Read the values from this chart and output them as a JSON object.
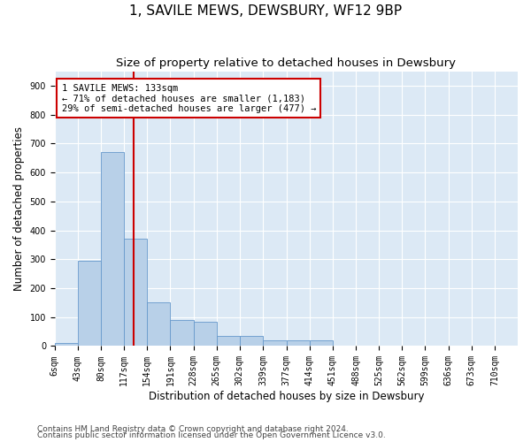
{
  "title": "1, SAVILE MEWS, DEWSBURY, WF12 9BP",
  "subtitle": "Size of property relative to detached houses in Dewsbury",
  "xlabel": "Distribution of detached houses by size in Dewsbury",
  "ylabel": "Number of detached properties",
  "footnote1": "Contains HM Land Registry data © Crown copyright and database right 2024.",
  "footnote2": "Contains public sector information licensed under the Open Government Licence v3.0.",
  "annotation_line1": "1 SAVILE MEWS: 133sqm",
  "annotation_line2": "← 71% of detached houses are smaller (1,183)",
  "annotation_line3": "29% of semi-detached houses are larger (477) →",
  "bar_edges": [
    6,
    43,
    80,
    117,
    154,
    191,
    228,
    265,
    302,
    339,
    377,
    414,
    451,
    488,
    525,
    562,
    599,
    636,
    673,
    710,
    747
  ],
  "bar_heights": [
    10,
    295,
    670,
    370,
    150,
    90,
    85,
    35,
    35,
    20,
    20,
    20,
    0,
    0,
    0,
    0,
    0,
    0,
    0,
    0
  ],
  "bar_color": "#b8d0e8",
  "bar_edgecolor": "#6699cc",
  "vline_color": "#cc0000",
  "vline_x": 133,
  "annotation_box_color": "#cc0000",
  "ylim": [
    0,
    950
  ],
  "yticks": [
    0,
    100,
    200,
    300,
    400,
    500,
    600,
    700,
    800,
    900
  ],
  "background_color": "#dce9f5",
  "grid_color": "#ffffff",
  "title_fontsize": 11,
  "subtitle_fontsize": 9.5,
  "axis_label_fontsize": 8.5,
  "tick_fontsize": 7,
  "annotation_fontsize": 7.5,
  "footnote_fontsize": 6.5
}
